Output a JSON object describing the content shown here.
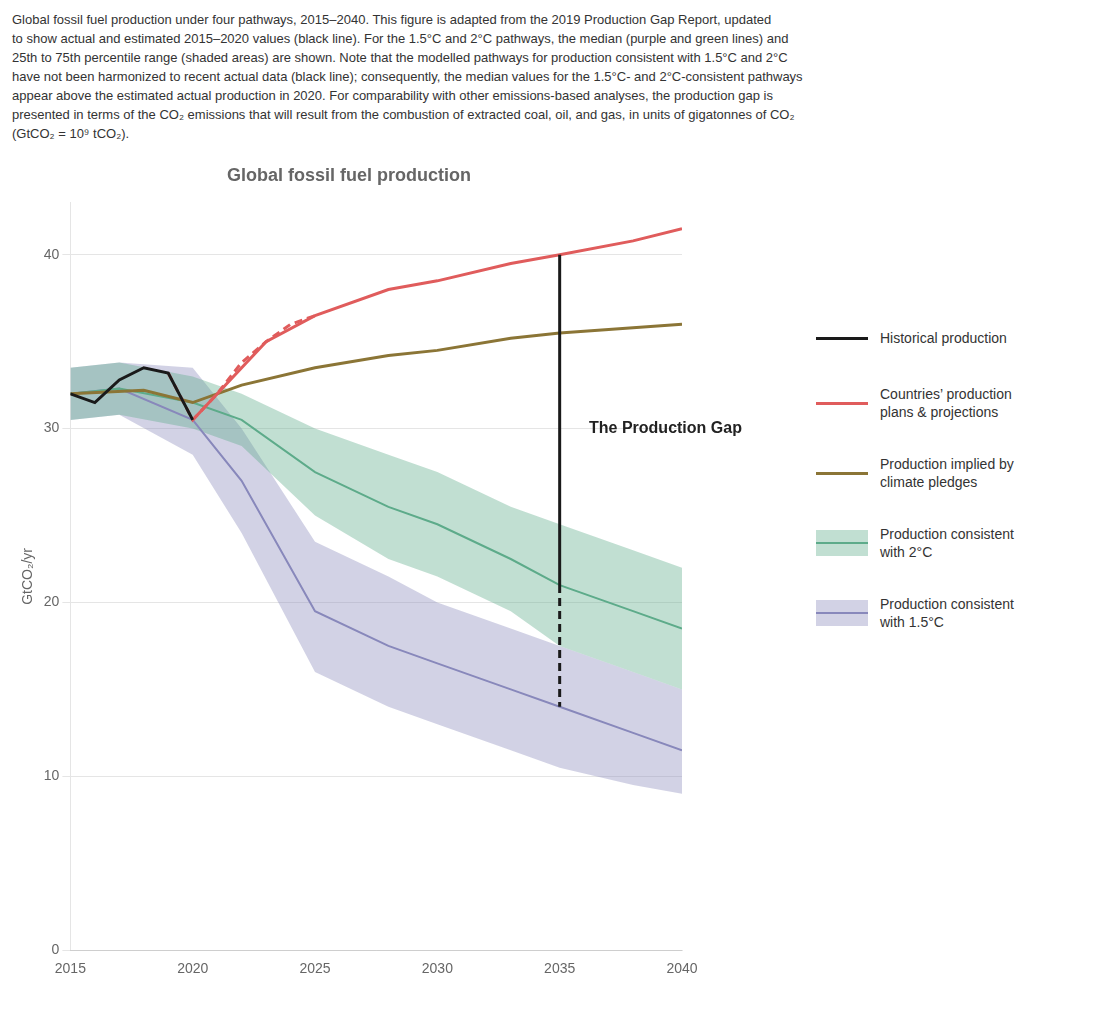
{
  "chart_data": {
    "type": "line",
    "title": "Global fossil fuel production",
    "caption": [
      "Global fossil fuel production under four pathways, 2015–2040. This figure is adapted from the 2019 Production Gap Report, updated",
      "to show actual and estimated 2015–2020 values (black line). For the 1.5°C and 2°C pathways, the median (purple and green lines) and",
      "25th to 75th percentile range (shaded areas) are shown. Note that the modelled pathways for production consistent with 1.5°C and 2°C",
      "have not been harmonized to recent actual data (black line); consequently, the median values for the 1.5°C- and 2°C-consistent pathways",
      "appear above the estimated actual production in 2020. For comparability with other emissions-based analyses, the production gap is",
      "presented in terms of the CO₂ emissions that will result from the combustion of extracted coal, oil, and gas, in units of gigatonnes of CO₂",
      "(GtCO₂ = 10⁹ tCO₂)."
    ],
    "y_label": "GtCO₂/yr",
    "xlim": [
      2015,
      2040
    ],
    "ylim": [
      0,
      43
    ],
    "xticks": [
      2015,
      2020,
      2025,
      2030,
      2035,
      2040
    ],
    "yticks": [
      0,
      10,
      20,
      30,
      40
    ],
    "grid": "y",
    "legend": "right",
    "annotations": [
      {
        "text": "The Production Gap",
        "x": 2036.2,
        "y": 30.0
      }
    ],
    "series": [
      {
        "name": "Historical production",
        "color": "#1a1a1a",
        "line_style": "solid",
        "x": [
          2015,
          2016,
          2017,
          2018,
          2019,
          2020
        ],
        "values": [
          32.0,
          31.5,
          32.8,
          33.5,
          33.2,
          30.5
        ]
      },
      {
        "color": "#1a1a1a",
        "line_style": "solid",
        "x": [
          2035,
          2035
        ],
        "values": [
          40.0,
          21.0
        ]
      },
      {
        "color": "#1a1a1a",
        "line_style": "dashed",
        "x": [
          2035,
          2035
        ],
        "values": [
          21.0,
          14.0
        ]
      },
      {
        "name": "Countries’ production\nplans & projections",
        "color": "#e05c5c",
        "line_style": "solid",
        "x": [
          2020,
          2023,
          2025,
          2028,
          2030,
          2033,
          2035,
          2038,
          2040
        ],
        "values": [
          30.5,
          35.0,
          36.5,
          38.0,
          38.5,
          39.5,
          40.0,
          40.8,
          41.5
        ]
      },
      {
        "color": "#e05c5c",
        "line_style": "dashed",
        "x": [
          2019,
          2020,
          2021,
          2022,
          2023,
          2024,
          2025
        ],
        "values": [
          33.2,
          30.5,
          32.0,
          33.8,
          35.0,
          36.0,
          36.5
        ]
      },
      {
        "name": "Production implied by\nclimate pledges",
        "color": "#8B7536",
        "line_style": "solid",
        "x": [
          2015,
          2018,
          2020,
          2022,
          2025,
          2028,
          2030,
          2033,
          2035,
          2038,
          2040
        ],
        "values": [
          32.0,
          32.2,
          31.5,
          32.5,
          33.5,
          34.2,
          34.5,
          35.2,
          35.5,
          35.8,
          36.0
        ]
      },
      {
        "name": "Production consistent\nwith 2°C",
        "color": "#5dab8a",
        "line_style": "solid",
        "x": [
          2015,
          2017,
          2020,
          2022,
          2025,
          2028,
          2030,
          2033,
          2035,
          2038,
          2040
        ],
        "values": [
          32.0,
          32.3,
          31.5,
          30.5,
          27.5,
          25.5,
          24.5,
          22.5,
          21.0,
          19.5,
          18.5
        ],
        "upper": [
          33.5,
          33.8,
          33.0,
          32.0,
          30.0,
          28.5,
          27.5,
          25.5,
          24.5,
          23.0,
          22.0
        ],
        "lower": [
          30.5,
          30.8,
          30.0,
          29.0,
          25.0,
          22.5,
          21.5,
          19.5,
          17.5,
          16.0,
          15.0
        ]
      },
      {
        "name": "Production consistent\nwith 1.5°C",
        "color": "#8888bb",
        "line_style": "solid",
        "x": [
          2015,
          2017,
          2020,
          2022,
          2025,
          2028,
          2030,
          2033,
          2035,
          2038,
          2040
        ],
        "values": [
          32.0,
          32.3,
          30.5,
          27.0,
          19.5,
          17.5,
          16.5,
          15.0,
          14.0,
          12.5,
          11.5
        ],
        "upper": [
          33.5,
          33.8,
          33.5,
          30.0,
          23.5,
          21.5,
          20.0,
          18.5,
          17.5,
          16.0,
          15.0
        ],
        "lower": [
          30.5,
          30.8,
          28.5,
          24.0,
          16.0,
          14.0,
          13.0,
          11.5,
          10.5,
          9.5,
          9.0
        ]
      }
    ]
  }
}
